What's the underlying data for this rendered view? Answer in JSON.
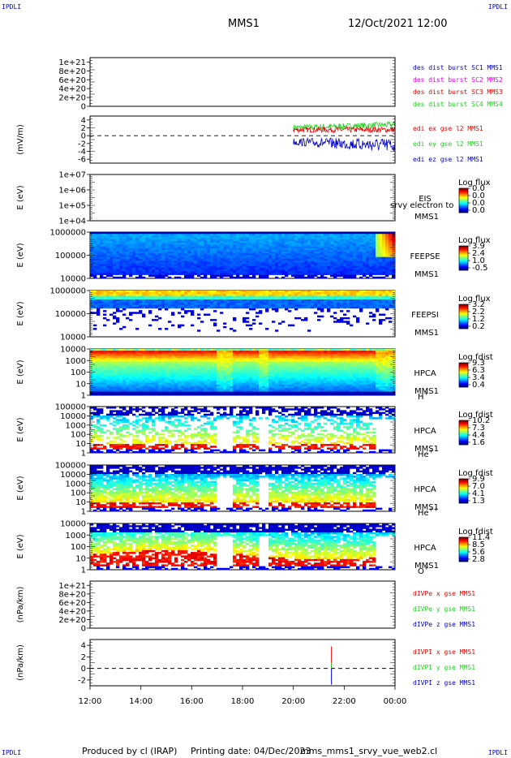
{
  "corner_labels": {
    "top_left": "IPDLI",
    "top_right": "IPDLI",
    "bottom_left": "IPDLI",
    "bottom_right": "IPDLI"
  },
  "header": {
    "spacecraft": "MMS1",
    "datetime": "12/Oct/2021 12:00"
  },
  "footer": {
    "produced_by": "Produced by cl (IRAP)",
    "printing_date": "Printing date: 04/Dec/2023",
    "filename": "mms_mms1_srvy_vue_web2.cl"
  },
  "colors": {
    "blue": "#0000c8",
    "magenta": "#e000e0",
    "red": "#e00000",
    "green": "#20d020"
  },
  "chart_data": {
    "type": "multi-panel",
    "time_axis": {
      "ticks": [
        "12:00",
        "14:00",
        "16:00",
        "18:00",
        "20:00",
        "22:00",
        "00:00"
      ],
      "range_hours": [
        12,
        24
      ]
    },
    "panels": [
      {
        "id": "des",
        "type": "line",
        "ylabel": "",
        "yticks": [
          "1e+21",
          "8e+20",
          "6e+20",
          "4e+20",
          "2e+20",
          "0"
        ],
        "yvalues": [
          1e+21,
          8e+20,
          6e+20,
          4e+20,
          2e+20,
          0
        ],
        "ylim": [
          0,
          1.1e+21
        ],
        "zero_line": true,
        "legend": [
          {
            "text": "des dist burst SC1 MMS1",
            "color": "#0000c8"
          },
          {
            "text": "des dist burst SC2 MMS2",
            "color": "#e000e0"
          },
          {
            "text": "des dist burst SC3 MMS3",
            "color": "#e00000"
          },
          {
            "text": "des dist burst SC4 MMS4",
            "color": "#20d020"
          }
        ]
      },
      {
        "id": "edi",
        "type": "line",
        "ylabel": "(mV/m)",
        "yticks": [
          "4",
          "2",
          "0",
          "-2",
          "-4",
          "-6"
        ],
        "yvalues": [
          4,
          2,
          0,
          -2,
          -4,
          -6
        ],
        "ylim": [
          -7,
          5
        ],
        "zero_line": true,
        "data_start_hour": 20.0,
        "series": [
          {
            "name": "edi ex gse l2 MMS1",
            "color": "#e00000"
          },
          {
            "name": "edi ey gse l2 MMS1",
            "color": "#20d020"
          },
          {
            "name": "edi ez gse l2 MMS1",
            "color": "#0000c8"
          }
        ]
      },
      {
        "id": "eis",
        "type": "spectrogram",
        "ylabel": "E (eV)",
        "yticks": [
          "1e+07",
          "1e+06",
          "1e+05",
          "1e+04"
        ],
        "log": true,
        "empty": true,
        "labels": [
          "EIS",
          "MMS1"
        ],
        "overlay_text": "srvy electron to",
        "cbar_title": "Log flux",
        "cbar_ticks": [
          "0.0",
          "0.0",
          "0.0",
          "0.0"
        ]
      },
      {
        "id": "feepse",
        "type": "spectrogram",
        "ylabel": "E (eV)",
        "yticks": [
          "1000000",
          "100000",
          "10000"
        ],
        "log": true,
        "pattern": "feeps_e",
        "labels": [
          "FEEPSE",
          "MMS1"
        ],
        "cbar_title": "Log flux",
        "cbar_ticks": [
          "3.9",
          "2.4",
          "1.0",
          "-0.5"
        ]
      },
      {
        "id": "feepsi",
        "type": "spectrogram",
        "ylabel": "E (eV)",
        "yticks": [
          "1000000",
          "100000",
          "10000"
        ],
        "log": true,
        "pattern": "feeps_i",
        "labels": [
          "FEEPSI",
          "MMS1"
        ],
        "cbar_title": "Log flux",
        "cbar_ticks": [
          "3.2",
          "2.2",
          "1.2",
          "0.2"
        ]
      },
      {
        "id": "hpca_h",
        "type": "spectrogram",
        "ylabel": "E (eV)",
        "yticks": [
          "10000",
          "1000",
          "100",
          "10",
          "1"
        ],
        "log": true,
        "pattern": "hpca_h",
        "labels": [
          "HPCA",
          "MMS1"
        ],
        "species": "H",
        "species_sup": "+",
        "cbar_title": "Log fdist",
        "cbar_ticks": [
          "9.3",
          "6.3",
          "3.4",
          "0.4"
        ]
      },
      {
        "id": "hpca_he",
        "type": "spectrogram",
        "ylabel": "E (eV)",
        "yticks": [
          "100000",
          "10000",
          "1000",
          "100",
          "10",
          "1"
        ],
        "log": true,
        "pattern": "hpca_he",
        "labels": [
          "HPCA",
          "MMS1"
        ],
        "species": "He",
        "species_sup": "+",
        "cbar_title": "Log fdist",
        "cbar_ticks": [
          "10.2",
          "7.3",
          "4.4",
          "1.6"
        ]
      },
      {
        "id": "hpca_hepp",
        "type": "spectrogram",
        "ylabel": "E (eV)",
        "yticks": [
          "100000",
          "10000",
          "1000",
          "100",
          "10",
          "1"
        ],
        "log": true,
        "pattern": "hpca_hepp",
        "labels": [
          "HPCA",
          "MMS1"
        ],
        "species": "He",
        "species_sup": "++",
        "cbar_title": "Log fdist",
        "cbar_ticks": [
          "9.9",
          "7.0",
          "4.1",
          "1.3"
        ]
      },
      {
        "id": "hpca_o",
        "type": "spectrogram",
        "ylabel": "E (eV)",
        "yticks": [
          "10000",
          "1000",
          "100",
          "10",
          "1"
        ],
        "log": true,
        "pattern": "hpca_o",
        "labels": [
          "HPCA",
          "MMS1"
        ],
        "species": "O",
        "species_sup": "+",
        "cbar_title": "Log fdist",
        "cbar_ticks": [
          "11.4",
          "8.5",
          "5.6",
          "2.8"
        ]
      },
      {
        "id": "divpe",
        "type": "line",
        "ylabel": "(nPa/km)",
        "yticks": [
          "1e+21",
          "8e+20",
          "6e+20",
          "4e+20",
          "2e+20",
          "0"
        ],
        "yvalues": [
          1e+21,
          8e+20,
          6e+20,
          4e+20,
          2e+20,
          0
        ],
        "ylim": [
          0,
          1.1e+21
        ],
        "zero_line": true,
        "legend": [
          {
            "text": "dIVPe x gse MMS1",
            "color": "#e00000"
          },
          {
            "text": "dIVPe y gse MMS1",
            "color": "#20d020"
          },
          {
            "text": "dIVPe z gse MMS1",
            "color": "#0000c8"
          }
        ]
      },
      {
        "id": "divpi",
        "type": "line",
        "ylabel": "(nPa/km)",
        "yticks": [
          "4",
          "2",
          "0",
          "-2"
        ],
        "yvalues": [
          4,
          2,
          0,
          -2
        ],
        "ylim": [
          -3,
          5
        ],
        "zero_line": true,
        "spike_hour": 21.5,
        "legend": [
          {
            "text": "dIVPI x gse MMS1",
            "color": "#e00000"
          },
          {
            "text": "dIVPI y gse MMS1",
            "color": "#20d020"
          },
          {
            "text": "dIVPI z gse MMS1",
            "color": "#0000c8"
          }
        ]
      }
    ]
  }
}
